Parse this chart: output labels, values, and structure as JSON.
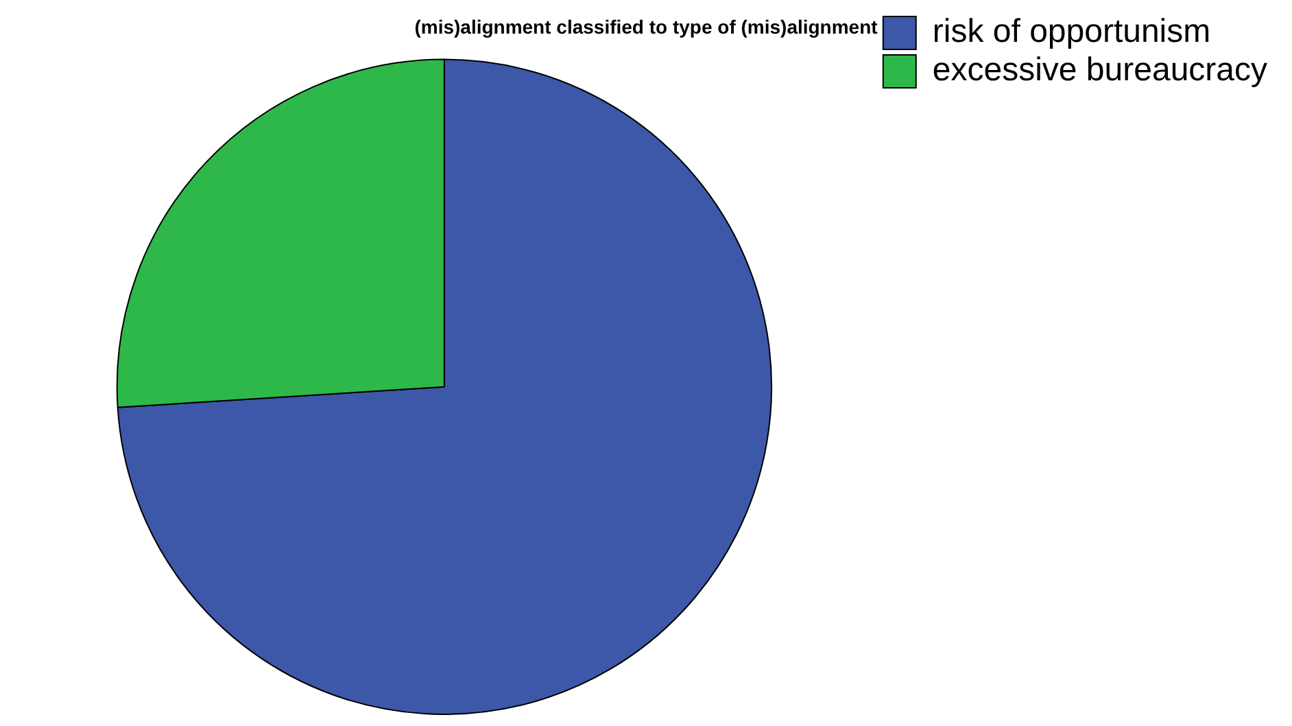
{
  "chart_data": {
    "type": "pie",
    "title": "(mis)alignment classified to type of (mis)alignment",
    "categories": [
      "risk of opportunism",
      "excessive bureaucracy"
    ],
    "values": [
      74,
      26
    ],
    "colors": [
      "#3d58a8",
      "#2eb84a"
    ],
    "legend": "right"
  }
}
